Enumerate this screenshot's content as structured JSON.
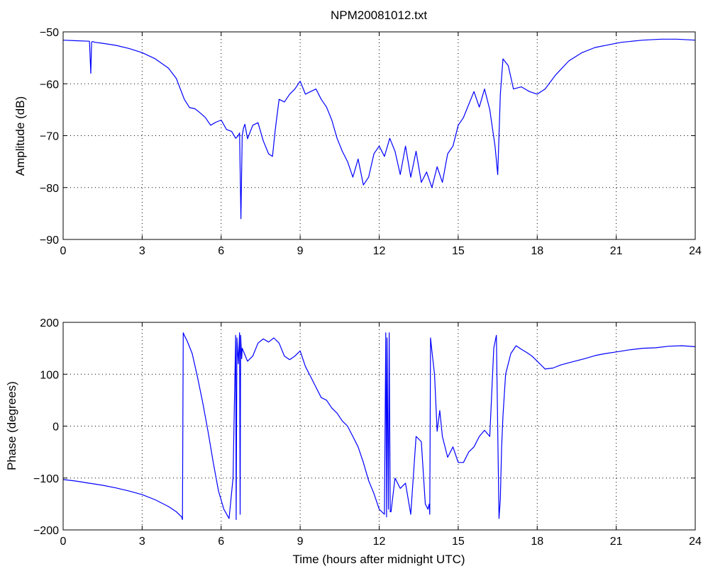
{
  "chart_data": [
    {
      "type": "line",
      "title": "NPM20081012.txt",
      "xlabel": "",
      "ylabel": "Amplitude (dB)",
      "xlim": [
        0,
        24
      ],
      "ylim": [
        -90,
        -50
      ],
      "xticks": [
        0,
        3,
        6,
        9,
        12,
        15,
        18,
        21,
        24
      ],
      "xtick_labels": [
        "0",
        "3",
        "6",
        "9",
        "12",
        "15",
        "18",
        "21",
        "24"
      ],
      "yticks": [
        -90,
        -80,
        -70,
        -60,
        -50
      ],
      "ytick_labels": [
        "−90",
        "−80",
        "−70",
        "−60",
        "−50"
      ],
      "grid": true,
      "color": "#0000ff",
      "series": [
        {
          "x": [
            0,
            0.5,
            1.0,
            1.05,
            1.08,
            1.1,
            1.15,
            1.2,
            1.5,
            2,
            2.5,
            3,
            3.5,
            4,
            4.3,
            4.6,
            4.8,
            5.0,
            5.2,
            5.4,
            5.6,
            5.8,
            6.0,
            6.2,
            6.4,
            6.55,
            6.65,
            6.7,
            6.75,
            6.8,
            6.85,
            6.9,
            7.0,
            7.2,
            7.4,
            7.6,
            7.8,
            7.95,
            8.05,
            8.1,
            8.2,
            8.4,
            8.6,
            8.8,
            9.0,
            9.2,
            9.4,
            9.6,
            9.8,
            10.0,
            10.2,
            10.4,
            10.6,
            10.8,
            11.0,
            11.2,
            11.4,
            11.6,
            11.8,
            12.0,
            12.2,
            12.4,
            12.6,
            12.8,
            13.0,
            13.2,
            13.4,
            13.6,
            13.8,
            14.0,
            14.2,
            14.4,
            14.6,
            14.8,
            15.0,
            15.2,
            15.4,
            15.6,
            15.8,
            16.0,
            16.2,
            16.4,
            16.5,
            16.6,
            16.7,
            16.9,
            17.1,
            17.4,
            17.7,
            18.0,
            18.3,
            18.7,
            19.2,
            19.7,
            20.2,
            20.7,
            21.2,
            22.0,
            22.7,
            23.3,
            24.0
          ],
          "y": [
            -51.6,
            -51.7,
            -51.8,
            -58.0,
            -52.0,
            -51.9,
            -51.9,
            -52.0,
            -52.2,
            -52.6,
            -53.2,
            -54.0,
            -55.2,
            -57.0,
            -59.0,
            -63.0,
            -64.6,
            -64.8,
            -65.6,
            -66.5,
            -68.0,
            -67.4,
            -67.0,
            -68.8,
            -69.2,
            -70.5,
            -70.0,
            -69.5,
            -86.0,
            -70.0,
            -68.5,
            -67.8,
            -70.6,
            -68.0,
            -67.5,
            -71.0,
            -73.5,
            -74.0,
            -69.0,
            -67.0,
            -63.0,
            -63.5,
            -62.0,
            -61.0,
            -59.5,
            -62.0,
            -61.5,
            -61.0,
            -63.0,
            -64.5,
            -67.0,
            -70.5,
            -73.0,
            -75.0,
            -78.0,
            -74.5,
            -79.5,
            -78.0,
            -73.5,
            -72.0,
            -74.0,
            -70.5,
            -73.0,
            -77.5,
            -72.0,
            -78.0,
            -73.0,
            -79.0,
            -77.0,
            -80.0,
            -76.0,
            -79.0,
            -73.5,
            -72.0,
            -68.0,
            -66.5,
            -64.0,
            -61.5,
            -64.5,
            -61.0,
            -65.0,
            -72.0,
            -77.5,
            -62.0,
            -55.2,
            -56.5,
            -61.0,
            -60.6,
            -61.5,
            -62.0,
            -61.0,
            -58.3,
            -55.6,
            -54.0,
            -53.0,
            -52.5,
            -52.0,
            -51.6,
            -51.4,
            -51.4,
            -51.6
          ]
        }
      ]
    },
    {
      "type": "line",
      "title": "",
      "xlabel": "Time (hours after midnight UTC)",
      "ylabel": "Phase (degrees)",
      "xlim": [
        0,
        24
      ],
      "ylim": [
        -200,
        200
      ],
      "xticks": [
        0,
        3,
        6,
        9,
        12,
        15,
        18,
        21,
        24
      ],
      "xtick_labels": [
        "0",
        "3",
        "6",
        "9",
        "12",
        "15",
        "18",
        "21",
        "24"
      ],
      "yticks": [
        -200,
        -100,
        0,
        100,
        200
      ],
      "ytick_labels": [
        "−200",
        "−100",
        "0",
        "100",
        "200"
      ],
      "grid": true,
      "color": "#0000ff",
      "series": [
        {
          "x": [
            0,
            0.5,
            1,
            1.5,
            2,
            2.5,
            3,
            3.5,
            4,
            4.3,
            4.5,
            4.53,
            4.56,
            4.6,
            4.7,
            4.9,
            5.1,
            5.3,
            5.5,
            5.7,
            5.9,
            6.1,
            6.3,
            6.45,
            6.55,
            6.57,
            6.6,
            6.65,
            6.7,
            6.72,
            6.74,
            6.78,
            6.8,
            7.0,
            7.2,
            7.4,
            7.6,
            7.8,
            8.0,
            8.2,
            8.4,
            8.6,
            8.8,
            9.0,
            9.2,
            9.4,
            9.6,
            9.8,
            10.0,
            10.2,
            10.4,
            10.6,
            10.8,
            11.0,
            11.2,
            11.4,
            11.6,
            11.8,
            12.0,
            12.2,
            12.25,
            12.28,
            12.3,
            12.35,
            12.38,
            12.42,
            12.45,
            12.6,
            12.8,
            13.0,
            13.2,
            13.4,
            13.6,
            13.75,
            13.85,
            13.9,
            13.92,
            13.95,
            14.0,
            14.1,
            14.2,
            14.3,
            14.4,
            14.6,
            14.8,
            15.0,
            15.2,
            15.4,
            15.6,
            15.8,
            16.0,
            16.2,
            16.35,
            16.45,
            16.55,
            16.6,
            16.62,
            16.65,
            16.7,
            16.8,
            17.0,
            17.2,
            17.4,
            17.6,
            17.8,
            18.0,
            18.3,
            18.6,
            18.9,
            19.2,
            19.5,
            19.8,
            20.2,
            20.6,
            21.0,
            21.5,
            22.0,
            22.5,
            23.0,
            23.5,
            24.0
          ],
          "y": [
            -103,
            -106,
            -110,
            -114,
            -119,
            -125,
            -132,
            -142,
            -155,
            -165,
            -175,
            -180,
            180,
            175,
            165,
            140,
            95,
            45,
            -10,
            -70,
            -125,
            -160,
            -178,
            -100,
            175,
            -180,
            170,
            120,
            180,
            -170,
            175,
            130,
            150,
            125,
            135,
            160,
            168,
            162,
            170,
            160,
            135,
            128,
            135,
            145,
            115,
            95,
            75,
            55,
            50,
            35,
            25,
            10,
            0,
            -20,
            -40,
            -70,
            -105,
            -130,
            -160,
            -170,
            180,
            -175,
            170,
            -160,
            180,
            -165,
            -165,
            -100,
            -120,
            -110,
            -170,
            -20,
            -30,
            -150,
            -160,
            -150,
            -170,
            170,
            145,
            100,
            -10,
            30,
            -20,
            -60,
            -40,
            -70,
            -70,
            -50,
            -40,
            -20,
            -8,
            -20,
            150,
            175,
            -178,
            -140,
            -100,
            -40,
            20,
            100,
            140,
            155,
            148,
            142,
            135,
            125,
            110,
            112,
            118,
            122,
            126,
            130,
            136,
            140,
            143,
            147,
            150,
            151,
            154,
            155,
            153
          ]
        }
      ]
    }
  ]
}
